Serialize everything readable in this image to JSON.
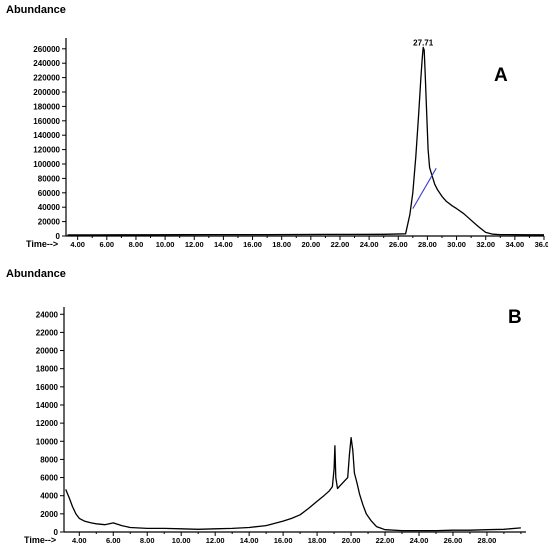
{
  "chart_data": [
    {
      "type": "line",
      "panel_label": "A",
      "ylabel": "Abundance",
      "xlabel": "Time-->",
      "xlim": [
        3.2,
        36.0
      ],
      "ylim": [
        0,
        275000
      ],
      "x_ticks": [
        "4.00",
        "6.00",
        "8.00",
        "10.00",
        "12.00",
        "14.00",
        "16.00",
        "18.00",
        "20.00",
        "22.00",
        "24.00",
        "26.00",
        "28.00",
        "30.00",
        "32.00",
        "34.00",
        "36.00"
      ],
      "x_tick_values": [
        4,
        6,
        8,
        10,
        12,
        14,
        16,
        18,
        20,
        22,
        24,
        26,
        28,
        30,
        32,
        34,
        36
      ],
      "y_ticks": [
        "0",
        "20000",
        "40000",
        "60000",
        "80000",
        "100000",
        "120000",
        "140000",
        "160000",
        "180000",
        "200000",
        "220000",
        "240000",
        "260000"
      ],
      "y_tick_values": [
        0,
        20000,
        40000,
        60000,
        80000,
        100000,
        120000,
        140000,
        160000,
        180000,
        200000,
        220000,
        240000,
        260000
      ],
      "annotation": {
        "text": "27.71",
        "x": 27.71,
        "y": 262000
      },
      "series": [
        {
          "color": "#000000",
          "x": [
            3.3,
            5.0,
            7.0,
            9.0,
            11.0,
            13.0,
            15.0,
            17.0,
            19.0,
            21.0,
            23.0,
            25.0,
            26.5,
            26.8,
            27.0,
            27.2,
            27.4,
            27.55,
            27.65,
            27.71,
            27.78,
            27.85,
            27.95,
            28.05,
            28.15,
            28.3,
            28.5,
            28.7,
            29.0,
            29.3,
            29.7,
            30.0,
            30.5,
            31.0,
            31.5,
            32.0,
            32.5,
            33.0,
            34.0,
            35.0,
            36.0
          ],
          "y": [
            1500,
            1500,
            1600,
            1700,
            1800,
            1900,
            2000,
            2000,
            2100,
            2200,
            2200,
            2400,
            3000,
            30000,
            60000,
            110000,
            170000,
            220000,
            248000,
            262000,
            258000,
            225000,
            170000,
            120000,
            95000,
            85000,
            72000,
            64000,
            55000,
            48000,
            42000,
            38000,
            31000,
            22000,
            13000,
            5000,
            2500,
            2000,
            1800,
            1700,
            1600
          ]
        },
        {
          "color": "#3b3bd1",
          "note": "baseline",
          "x": [
            27.0,
            28.6
          ],
          "y": [
            38000,
            94000
          ]
        }
      ]
    },
    {
      "type": "line",
      "panel_label": "B",
      "ylabel": "Abundance",
      "xlabel": "Time-->",
      "xlim": [
        3.1,
        30.3
      ],
      "ylim": [
        0,
        24800
      ],
      "x_ticks": [
        "4.00",
        "6.00",
        "8.00",
        "10.00",
        "12.00",
        "14.00",
        "16.00",
        "18.00",
        "20.00",
        "22.00",
        "24.00",
        "26.00",
        "28.00"
      ],
      "x_tick_values": [
        4,
        6,
        8,
        10,
        12,
        14,
        16,
        18,
        20,
        22,
        24,
        26,
        28
      ],
      "y_ticks": [
        "0",
        "2000",
        "4000",
        "6000",
        "8000",
        "10000",
        "12000",
        "14000",
        "16000",
        "18000",
        "20000",
        "22000",
        "24000"
      ],
      "y_tick_values": [
        0,
        2000,
        4000,
        6000,
        8000,
        10000,
        12000,
        14000,
        16000,
        18000,
        20000,
        22000,
        24000
      ],
      "series": [
        {
          "color": "#000000",
          "x": [
            3.2,
            3.4,
            3.6,
            3.8,
            4.0,
            4.3,
            4.7,
            5.0,
            5.5,
            6.0,
            6.5,
            7.0,
            8.0,
            9.0,
            10.0,
            11.0,
            12.0,
            13.0,
            14.0,
            15.0,
            16.0,
            16.5,
            17.0,
            17.5,
            18.0,
            18.4,
            18.7,
            18.9,
            19.0,
            19.05,
            19.1,
            19.2,
            19.4,
            19.6,
            19.8,
            19.9,
            20.0,
            20.1,
            20.2,
            20.35,
            20.5,
            20.7,
            20.9,
            21.2,
            21.5,
            22.0,
            23.0,
            24.0,
            25.0,
            26.0,
            27.0,
            28.0,
            29.0,
            30.0
          ],
          "y": [
            4700,
            3800,
            2800,
            2000,
            1500,
            1200,
            1000,
            900,
            800,
            1000,
            700,
            500,
            400,
            400,
            350,
            300,
            350,
            400,
            500,
            700,
            1200,
            1500,
            1900,
            2600,
            3400,
            4000,
            4500,
            5000,
            7000,
            9500,
            6000,
            4800,
            5200,
            5600,
            6000,
            8500,
            10400,
            9000,
            6500,
            5400,
            4200,
            3000,
            2000,
            1200,
            600,
            250,
            150,
            150,
            150,
            200,
            200,
            250,
            300,
            450
          ]
        }
      ]
    }
  ]
}
